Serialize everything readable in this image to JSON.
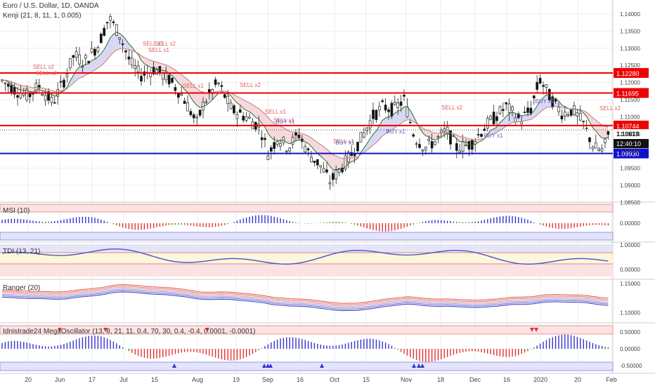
{
  "main": {
    "title": "Euro / U.S. Dollar, 1D, OANDA",
    "indicator": "Kenji (21, 8, 11, 1, 0.005)",
    "y_ticks": [
      "1.14000",
      "1.13500",
      "1.13000",
      "1.12500",
      "1.12000",
      "1.11500",
      "1.11000",
      "1.10500",
      "1.10000",
      "1.09500",
      "1.09000",
      "1.08500"
    ],
    "levels": [
      {
        "value": 1.1228,
        "label": "1.12280",
        "color": "#ee0000"
      },
      {
        "value": 1.11695,
        "label": "1.11695",
        "color": "#ee0000"
      },
      {
        "value": 1.10744,
        "label": "1.10744",
        "color": "#ee0000"
      },
      {
        "value": 1.0993,
        "label": "1.09930",
        "color": "#1111cc"
      }
    ],
    "price_label": "1.10618",
    "countdown": "12:40:10",
    "signals": [
      {
        "text": "SELL x2",
        "x": 62,
        "y": 98,
        "color": "#e06060"
      },
      {
        "text": "SELL x2",
        "x": 66,
        "y": 107,
        "color": "#e06060"
      },
      {
        "text": "SELL x2",
        "x": 218,
        "y": 65,
        "color": "#e06060"
      },
      {
        "text": "SELL x2",
        "x": 235,
        "y": 65,
        "color": "#e06060"
      },
      {
        "text": "SELL x1",
        "x": 226,
        "y": 74,
        "color": "#e06060"
      },
      {
        "text": "SELL x1",
        "x": 275,
        "y": 125,
        "color": "#e06060"
      },
      {
        "text": "SELL x2",
        "x": 356,
        "y": 124,
        "color": "#e06060"
      },
      {
        "text": "SELL x1",
        "x": 392,
        "y": 162,
        "color": "#e06060"
      },
      {
        "text": "SELL x1",
        "x": 404,
        "y": 174,
        "color": "#e06060"
      },
      {
        "text": "SELL x1",
        "x": 489,
        "y": 204,
        "color": "#e06060"
      },
      {
        "text": "SELL x2",
        "x": 643,
        "y": 156,
        "color": "#e06060"
      },
      {
        "text": "SELL x2",
        "x": 868,
        "y": 157,
        "color": "#e06060"
      },
      {
        "text": "BUY x1",
        "x": 563,
        "y": 190,
        "color": "#6060d0"
      },
      {
        "text": "BUY x1",
        "x": 702,
        "y": 196,
        "color": "#6060d0"
      },
      {
        "text": "BUY x1",
        "x": 775,
        "y": 147,
        "color": "#6060d0"
      },
      {
        "text": "BUY x1",
        "x": 406,
        "y": 176,
        "color": "#6060d0"
      },
      {
        "text": "BUY x1",
        "x": 491,
        "y": 206,
        "color": "#6060d0"
      }
    ]
  },
  "panels": [
    {
      "title": "MSI (10)",
      "ticks": [
        "0.00000"
      ]
    },
    {
      "title": "TDI (13, 21)",
      "ticks": [
        "1.00000",
        "0.00000"
      ]
    },
    {
      "title": "Ranger (20)",
      "ticks": [
        "1.15000",
        "1.10000"
      ]
    },
    {
      "title": "Idnistrade24 MegaOscillator (13, 8, 21, 11, 0.4, 70, 30, 0.4, -0.4, 0.0001, -0.0001)",
      "ticks": [
        "0.50000",
        "0.00000",
        "-0.50000"
      ]
    }
  ],
  "x_ticks": [
    "20",
    "Jun",
    "17",
    "Jul",
    "15",
    "Aug",
    "19",
    "Sep",
    "16",
    "Oct",
    "15",
    "Nov",
    "18",
    "Dec",
    "16",
    "2020",
    "20",
    "Feb"
  ],
  "colors": {
    "up": "#ffffff",
    "down": "#111111",
    "green_line": "#2e6b2e",
    "red_line": "#c06060",
    "blue": "#3333cc"
  }
}
